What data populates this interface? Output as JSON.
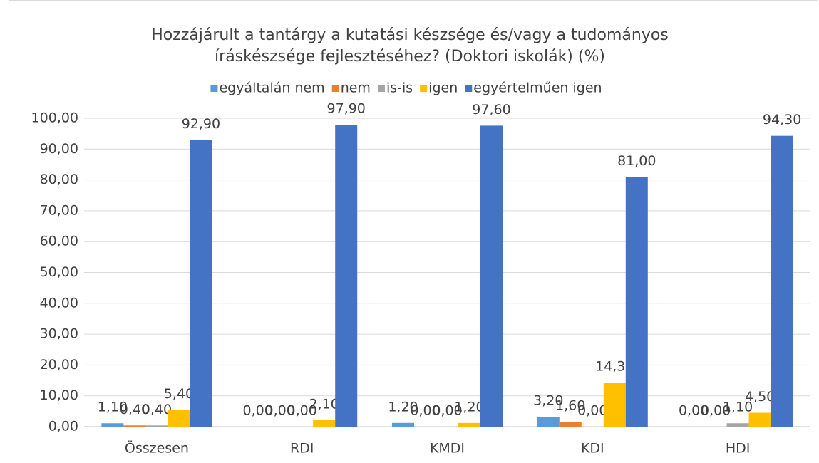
{
  "chart_data": {
    "type": "bar",
    "title": [
      "Hozzájárult a tantárgy a kutatási készsége és/vagy a tudományos",
      "íráskészsége fejlesztéséhez? (Doktori iskolák) (%)"
    ],
    "categories": [
      "Összesen",
      "RDI",
      "KMDI",
      "KDI",
      "HDI"
    ],
    "series": [
      {
        "name": "egyáltalán nem",
        "color": "#5b9bd5",
        "values": [
          1.1,
          0,
          1.2,
          3.2,
          0
        ],
        "value_labels": [
          "1,10",
          "0,00",
          "1,20",
          "3,20",
          "0,00"
        ]
      },
      {
        "name": "nem",
        "color": "#ed7d31",
        "values": [
          0.4,
          0,
          0,
          1.6,
          0
        ],
        "value_labels": [
          "0,40",
          "0,00",
          "0,00",
          "1,60",
          "0,00"
        ]
      },
      {
        "name": "is-is",
        "color": "#a5a5a5",
        "values": [
          0.4,
          0,
          0,
          0,
          1.1
        ],
        "value_labels": [
          "0,40",
          "0,00",
          "0,00",
          "0,00",
          "1,10"
        ]
      },
      {
        "name": "igen",
        "color": "#ffc000",
        "values": [
          5.4,
          2.1,
          1.2,
          14.3,
          4.5
        ],
        "value_labels": [
          "5,40",
          "2,10",
          "1,20",
          "14,30",
          "4,50"
        ]
      },
      {
        "name": "egyértelműen igen",
        "color": "#4472c4",
        "values": [
          92.9,
          97.9,
          97.6,
          81.0,
          94.3
        ],
        "value_labels": [
          "92,90",
          "97,90",
          "97,60",
          "81,00",
          "94,30"
        ]
      }
    ],
    "ylim": [
      0,
      100
    ],
    "yticks": [
      {
        "value": 0,
        "label": "0,00"
      },
      {
        "value": 10,
        "label": "10,00"
      },
      {
        "value": 20,
        "label": "20,00"
      },
      {
        "value": 30,
        "label": "30,00"
      },
      {
        "value": 40,
        "label": "40,00"
      },
      {
        "value": 50,
        "label": "50,00"
      },
      {
        "value": 60,
        "label": "60,00"
      },
      {
        "value": 70,
        "label": "70,00"
      },
      {
        "value": 80,
        "label": "80,00"
      },
      {
        "value": 90,
        "label": "90,00"
      },
      {
        "value": 100,
        "label": "100,00"
      }
    ],
    "grid": true,
    "legend": "top"
  }
}
